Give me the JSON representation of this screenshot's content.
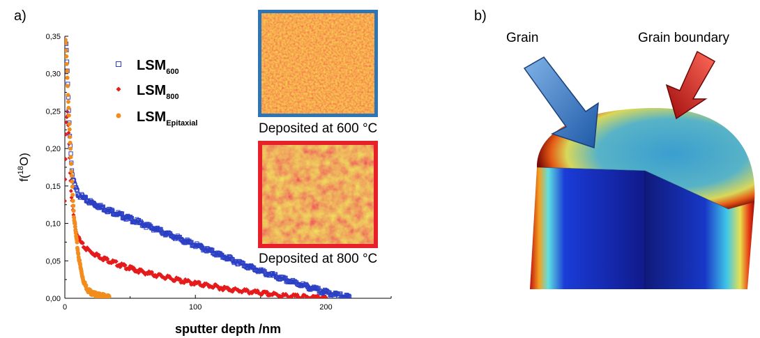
{
  "panel_a": {
    "label": "a)",
    "inset_top_caption": "Deposited at 600 °C",
    "inset_bottom_caption": "Deposited at 800 °C",
    "inset_top_color": "#2e75b6",
    "inset_bottom_color": "#e8202a"
  },
  "panel_b": {
    "label": "b)",
    "arrow_grain_label": "Grain",
    "arrow_boundary_label": "Grain boundary",
    "grain_arrow_color": "#3a79c0",
    "boundary_arrow_color": "#d81c14"
  },
  "chart_data": {
    "type": "scatter",
    "title": "",
    "xlabel": "sputter depth /nm",
    "ylabel_main": "f(",
    "ylabel_sup": "18",
    "ylabel_tail": "O)",
    "xlim": [
      0,
      250
    ],
    "ylim": [
      0,
      0.35
    ],
    "x_ticks": [
      "0",
      "100",
      "200"
    ],
    "x_tick_values": [
      0,
      100,
      200
    ],
    "y_ticks": [
      "0,00",
      "0,05",
      "0,10",
      "0,15",
      "0,20",
      "0,25",
      "0,30",
      "0,35"
    ],
    "y_tick_values": [
      0,
      0.05,
      0.1,
      0.15,
      0.2,
      0.25,
      0.3,
      0.35
    ],
    "legend_position": "top-left",
    "series": [
      {
        "name": "LSM600",
        "legend_main": "LSM",
        "legend_sub": "600",
        "marker": "open-square",
        "color": "#2b3fc4",
        "x": [
          1,
          2,
          3,
          4,
          5,
          6,
          8,
          10,
          15,
          20,
          30,
          40,
          50,
          60,
          70,
          80,
          90,
          100,
          110,
          120,
          130,
          140,
          150,
          160,
          170,
          180,
          190,
          200,
          210,
          218
        ],
        "y": [
          0.34,
          0.3,
          0.25,
          0.21,
          0.18,
          0.16,
          0.148,
          0.14,
          0.133,
          0.128,
          0.12,
          0.113,
          0.106,
          0.099,
          0.092,
          0.085,
          0.078,
          0.071,
          0.064,
          0.057,
          0.05,
          0.043,
          0.036,
          0.03,
          0.024,
          0.019,
          0.013,
          0.008,
          0.004,
          0.001
        ]
      },
      {
        "name": "LSM800",
        "legend_main": "LSM",
        "legend_sub": "800",
        "marker": "filled-diamond",
        "color": "#e51b1b",
        "x": [
          0,
          1,
          2,
          3,
          4,
          5,
          6,
          7,
          8,
          10,
          12,
          15,
          20,
          25,
          30,
          40,
          50,
          60,
          70,
          80,
          90,
          100,
          110,
          120,
          130,
          140,
          150,
          160,
          170,
          180,
          190,
          200
        ],
        "y": [
          0.13,
          0.23,
          0.25,
          0.22,
          0.17,
          0.135,
          0.12,
          0.105,
          0.095,
          0.082,
          0.075,
          0.068,
          0.062,
          0.057,
          0.053,
          0.046,
          0.04,
          0.035,
          0.031,
          0.027,
          0.023,
          0.02,
          0.017,
          0.014,
          0.011,
          0.009,
          0.007,
          0.005,
          0.003,
          0.002,
          0.001,
          0.0
        ]
      },
      {
        "name": "LSMEpitaxial",
        "legend_main": "LSM",
        "legend_sub": "Epitaxial",
        "marker": "filled-circle",
        "color": "#f28c1c",
        "x": [
          0.5,
          1,
          1.5,
          2,
          2.5,
          3,
          3.5,
          4,
          4.5,
          5,
          5.5,
          6,
          6.5,
          7,
          8,
          9,
          10,
          11,
          12,
          13,
          14,
          15,
          16,
          18,
          20,
          22,
          25,
          28,
          31,
          34
        ],
        "y": [
          0.345,
          0.33,
          0.31,
          0.29,
          0.27,
          0.25,
          0.23,
          0.21,
          0.19,
          0.17,
          0.155,
          0.14,
          0.125,
          0.11,
          0.092,
          0.077,
          0.063,
          0.051,
          0.041,
          0.033,
          0.026,
          0.02,
          0.016,
          0.011,
          0.008,
          0.006,
          0.004,
          0.003,
          0.002,
          0.001
        ]
      }
    ]
  }
}
